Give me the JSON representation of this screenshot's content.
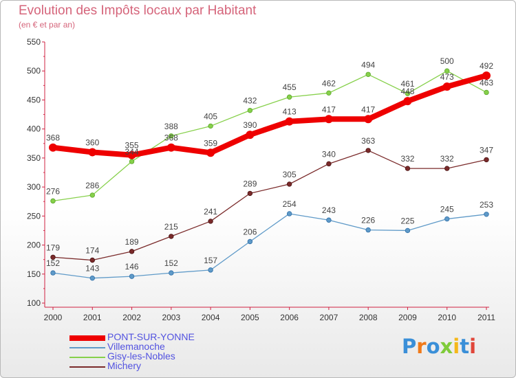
{
  "chart_data": {
    "type": "line",
    "title": "Evolution des Impôts locaux par Habitant",
    "subtitle": "(en € et par an)",
    "x": [
      "2000",
      "2001",
      "2002",
      "2003",
      "2004",
      "2005",
      "2006",
      "2007",
      "2008",
      "2009",
      "2010",
      "2011"
    ],
    "ylim": [
      100,
      550
    ],
    "yticks": [
      100,
      150,
      200,
      250,
      300,
      350,
      400,
      450,
      500,
      550
    ],
    "grid": false,
    "legend_position": "bottom-left",
    "series": [
      {
        "name": "PONT-SUR-YONNE",
        "color": "#ee0000",
        "values": [
          368,
          360,
          355,
          368,
          359,
          390,
          413,
          417,
          417,
          448,
          473,
          492
        ]
      },
      {
        "name": "Villemanoche",
        "color": "#5f9ac8",
        "values": [
          152,
          143,
          146,
          152,
          157,
          206,
          254,
          243,
          226,
          225,
          245,
          253
        ]
      },
      {
        "name": "Gisy-les-Nobles",
        "color": "#86d04a",
        "values": [
          276,
          286,
          344,
          388,
          405,
          432,
          455,
          462,
          494,
          461,
          500,
          463
        ]
      },
      {
        "name": "Michery",
        "color": "#7a2a2a",
        "values": [
          179,
          174,
          189,
          215,
          241,
          289,
          305,
          340,
          363,
          332,
          332,
          347
        ]
      }
    ],
    "watermark": "Proxiti"
  }
}
